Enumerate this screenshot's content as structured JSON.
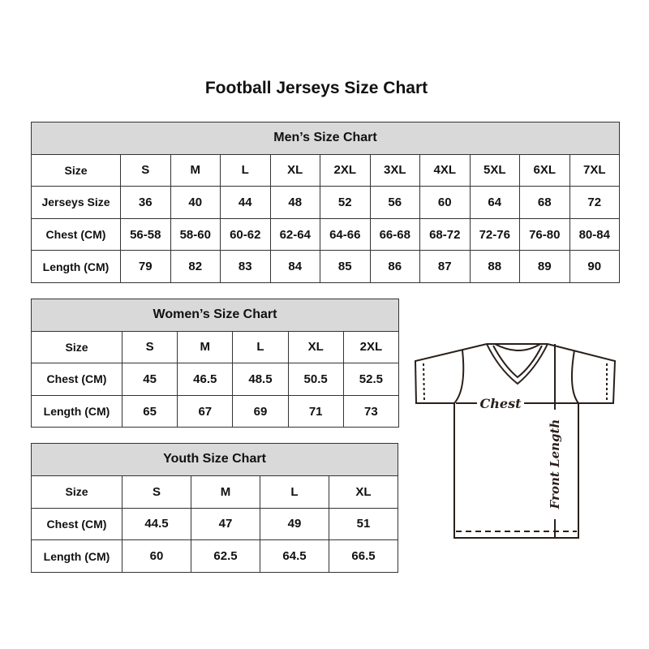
{
  "title": "Football Jerseys Size Chart",
  "men": {
    "title": "Men’s Size Chart",
    "rows": [
      [
        "Size",
        "S",
        "M",
        "L",
        "XL",
        "2XL",
        "3XL",
        "4XL",
        "5XL",
        "6XL",
        "7XL"
      ],
      [
        "Jerseys Size",
        "36",
        "40",
        "44",
        "48",
        "52",
        "56",
        "60",
        "64",
        "68",
        "72"
      ],
      [
        "Chest (CM)",
        "56-58",
        "58-60",
        "60-62",
        "62-64",
        "64-66",
        "66-68",
        "68-72",
        "72-76",
        "76-80",
        "80-84"
      ],
      [
        "Length (CM)",
        "79",
        "82",
        "83",
        "84",
        "85",
        "86",
        "87",
        "88",
        "89",
        "90"
      ]
    ]
  },
  "women": {
    "title": "Women’s Size Chart",
    "rows": [
      [
        "Size",
        "S",
        "M",
        "L",
        "XL",
        "2XL"
      ],
      [
        "Chest (CM)",
        "45",
        "46.5",
        "48.5",
        "50.5",
        "52.5"
      ],
      [
        "Length (CM)",
        "65",
        "67",
        "69",
        "71",
        "73"
      ]
    ]
  },
  "youth": {
    "title": "Youth Size Chart",
    "rows": [
      [
        "Size",
        "S",
        "M",
        "L",
        "XL"
      ],
      [
        "Chest (CM)",
        "44.5",
        "47",
        "49",
        "51"
      ],
      [
        "Length (CM)",
        "60",
        "62.5",
        "64.5",
        "66.5"
      ]
    ]
  },
  "diagram": {
    "chest_label": "Chest",
    "length_label": "Front Length"
  }
}
